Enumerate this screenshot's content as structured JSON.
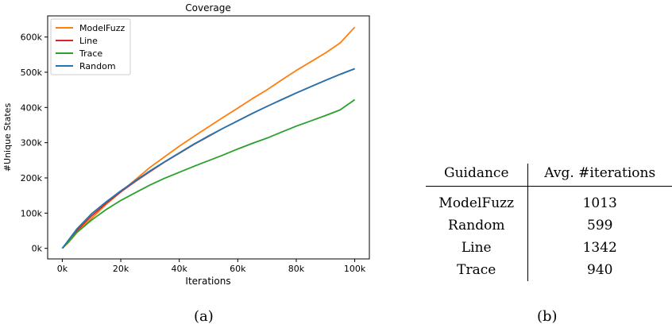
{
  "chart_data": {
    "type": "line",
    "title": "Coverage",
    "xlabel": "Iterations",
    "ylabel": "#Unique States",
    "xlim": [
      -5000,
      105000
    ],
    "ylim": [
      -30000,
      660000
    ],
    "x_ticks": [
      0,
      20000,
      40000,
      60000,
      80000,
      100000
    ],
    "x_tick_labels": [
      "0k",
      "20k",
      "40k",
      "60k",
      "80k",
      "100k"
    ],
    "y_ticks": [
      0,
      100000,
      200000,
      300000,
      400000,
      500000,
      600000
    ],
    "y_tick_labels": [
      "0k",
      "100k",
      "200k",
      "300k",
      "400k",
      "500k",
      "600k"
    ],
    "grid": false,
    "legend_position": "top-left",
    "series": [
      {
        "name": "ModelFuzz",
        "color": "#ff7f0e",
        "x": [
          0,
          2000,
          5000,
          10000,
          15000,
          20000,
          25000,
          30000,
          35000,
          40000,
          45000,
          50000,
          55000,
          60000,
          65000,
          70000,
          75000,
          80000,
          85000,
          90000,
          95000,
          100000
        ],
        "y": [
          0,
          15000,
          45000,
          85000,
          125000,
          160000,
          195000,
          230000,
          260000,
          290000,
          318000,
          345000,
          372000,
          398000,
          425000,
          450000,
          478000,
          505000,
          530000,
          555000,
          583000,
          628000
        ]
      },
      {
        "name": "Line",
        "color": "#d62728",
        "x": [
          0,
          2000,
          5000,
          10000,
          15000,
          20000,
          25000,
          30000,
          35000,
          40000,
          45000,
          50000,
          55000,
          60000,
          65000,
          70000,
          75000,
          80000,
          85000,
          90000,
          95000,
          100000
        ],
        "y": [
          0,
          20000,
          50000,
          92000,
          128000,
          160000,
          190000,
          218000,
          245000,
          270000,
          295000,
          318000,
          341000,
          362000,
          383000,
          403000,
          422000,
          441000,
          459000,
          477000,
          494000,
          510000
        ]
      },
      {
        "name": "Trace",
        "color": "#2ca02c",
        "x": [
          0,
          2000,
          5000,
          10000,
          15000,
          20000,
          25000,
          30000,
          35000,
          40000,
          45000,
          50000,
          55000,
          60000,
          65000,
          70000,
          75000,
          80000,
          85000,
          90000,
          95000,
          100000
        ],
        "y": [
          0,
          18000,
          45000,
          80000,
          110000,
          136000,
          158000,
          180000,
          199000,
          216000,
          233000,
          249000,
          265000,
          282000,
          298000,
          313000,
          330000,
          347000,
          362000,
          377000,
          393000,
          422000
        ]
      },
      {
        "name": "Random",
        "color": "#1f77b4",
        "x": [
          0,
          2000,
          5000,
          10000,
          15000,
          20000,
          25000,
          30000,
          35000,
          40000,
          45000,
          50000,
          55000,
          60000,
          65000,
          70000,
          75000,
          80000,
          85000,
          90000,
          95000,
          100000
        ],
        "y": [
          0,
          22000,
          55000,
          98000,
          132000,
          163000,
          192000,
          220000,
          246000,
          271000,
          296000,
          319000,
          341000,
          362000,
          383000,
          403000,
          422000,
          441000,
          459000,
          477000,
          494000,
          510000
        ]
      }
    ]
  },
  "captions": {
    "a": "(a)",
    "b": "(b)"
  },
  "table": {
    "headers": [
      "Guidance",
      "Avg. #iterations"
    ],
    "rows": [
      [
        "ModelFuzz",
        "1013"
      ],
      [
        "Random",
        "599"
      ],
      [
        "Line",
        "1342"
      ],
      [
        "Trace",
        "940"
      ]
    ]
  }
}
